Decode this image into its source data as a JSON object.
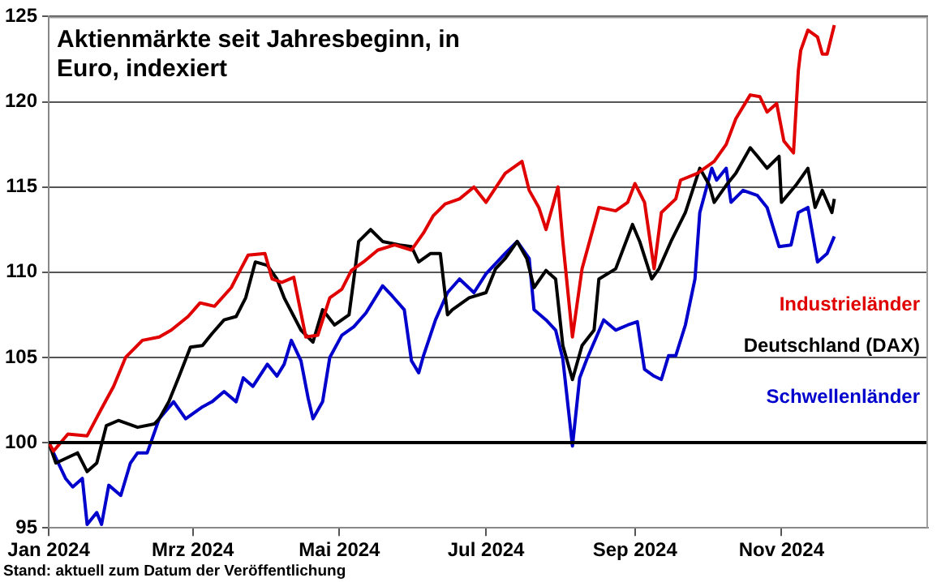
{
  "chart_data": {
    "type": "line",
    "title": "Aktienmärkte seit Jahresbeginn, in Euro, indexiert",
    "annotations": [
      "Stand: aktuell zum Datum der Veröffentlichung"
    ],
    "xlim": [
      "2024-01-01",
      "2025-01-01"
    ],
    "xticks": [
      {
        "value": "2024-01-01",
        "label": "Jan 2024"
      },
      {
        "value": "2024-03-01",
        "label": "Mrz 2024"
      },
      {
        "value": "2024-05-01",
        "label": "Mai 2024"
      },
      {
        "value": "2024-07-01",
        "label": "Jul 2024"
      },
      {
        "value": "2024-09-01",
        "label": "Sep 2024"
      },
      {
        "value": "2024-11-01",
        "label": "Nov 2024"
      }
    ],
    "ylim": [
      95,
      125
    ],
    "yticks": [
      95,
      100,
      105,
      110,
      115,
      120,
      125
    ],
    "grid": "y",
    "legend": false,
    "marker": "none",
    "line_style": "solid",
    "ref_lines": [
      {
        "axis": "y",
        "value": 100,
        "color": "#000000"
      }
    ],
    "series": [
      {
        "name": "Industrieländer",
        "color": "#e00000",
        "x": [
          "2024-01-01",
          "2024-01-03",
          "2024-01-09",
          "2024-01-17",
          "2024-01-23",
          "2024-01-28",
          "2024-02-02",
          "2024-02-09",
          "2024-02-16",
          "2024-02-21",
          "2024-02-28",
          "2024-03-04",
          "2024-03-10",
          "2024-03-17",
          "2024-03-21",
          "2024-03-24",
          "2024-03-31",
          "2024-04-03",
          "2024-04-07",
          "2024-04-12",
          "2024-04-17",
          "2024-04-22",
          "2024-04-27",
          "2024-05-02",
          "2024-05-06",
          "2024-05-11",
          "2024-05-17",
          "2024-05-24",
          "2024-05-31",
          "2024-06-05",
          "2024-06-09",
          "2024-06-14",
          "2024-06-20",
          "2024-06-26",
          "2024-07-01",
          "2024-07-09",
          "2024-07-16",
          "2024-07-19",
          "2024-07-23",
          "2024-07-26",
          "2024-07-31",
          "2024-08-02",
          "2024-08-06",
          "2024-08-10",
          "2024-08-17",
          "2024-08-24",
          "2024-08-29",
          "2024-09-01",
          "2024-09-05",
          "2024-09-09",
          "2024-09-12",
          "2024-09-18",
          "2024-09-20",
          "2024-09-27",
          "2024-10-04",
          "2024-10-09",
          "2024-10-13",
          "2024-10-19",
          "2024-10-23",
          "2024-10-26",
          "2024-10-30",
          "2024-11-02",
          "2024-11-06",
          "2024-11-08",
          "2024-11-09",
          "2024-11-12",
          "2024-11-16",
          "2024-11-18",
          "2024-11-20",
          "2024-11-23"
        ],
        "values": [
          100,
          99.5,
          100.5,
          100.4,
          102,
          103.3,
          105,
          106,
          106.2,
          106.6,
          107.4,
          108.2,
          108,
          109.1,
          110.2,
          111,
          111.1,
          109.6,
          109.4,
          109.7,
          106.2,
          106.3,
          108.5,
          109,
          110.1,
          110.6,
          111.3,
          111.6,
          111.3,
          112.3,
          113.3,
          114,
          114.3,
          115,
          114.1,
          115.8,
          116.5,
          114.8,
          113.8,
          112.5,
          115,
          111.8,
          106.2,
          110.2,
          113.8,
          113.6,
          114.1,
          115.2,
          114.1,
          110.2,
          113.5,
          114.3,
          115.4,
          115.8,
          116.5,
          117.5,
          119,
          120.4,
          120.3,
          119.4,
          119.9,
          117.7,
          117,
          121.8,
          123,
          124.2,
          123.8,
          122.8,
          122.8,
          124.5
        ]
      },
      {
        "name": "Deutschland (DAX)",
        "color": "#000000",
        "x": [
          "2024-01-01",
          "2024-01-04",
          "2024-01-13",
          "2024-01-17",
          "2024-01-21",
          "2024-01-25",
          "2024-01-30",
          "2024-02-07",
          "2024-02-14",
          "2024-02-16",
          "2024-02-20",
          "2024-02-24",
          "2024-02-29",
          "2024-03-05",
          "2024-03-09",
          "2024-03-14",
          "2024-03-19",
          "2024-03-23",
          "2024-03-27",
          "2024-04-01",
          "2024-04-05",
          "2024-04-08",
          "2024-04-15",
          "2024-04-20",
          "2024-04-24",
          "2024-04-29",
          "2024-05-05",
          "2024-05-07",
          "2024-05-09",
          "2024-05-14",
          "2024-05-19",
          "2024-05-26",
          "2024-05-31",
          "2024-06-03",
          "2024-06-08",
          "2024-06-12",
          "2024-06-15",
          "2024-06-17",
          "2024-06-24",
          "2024-07-01",
          "2024-07-05",
          "2024-07-09",
          "2024-07-14",
          "2024-07-18",
          "2024-07-21",
          "2024-07-26",
          "2024-07-30",
          "2024-08-02",
          "2024-08-06",
          "2024-08-10",
          "2024-08-15",
          "2024-08-17",
          "2024-08-24",
          "2024-08-31",
          "2024-09-03",
          "2024-09-08",
          "2024-09-11",
          "2024-09-16",
          "2024-09-22",
          "2024-09-28",
          "2024-10-02",
          "2024-10-04",
          "2024-10-09",
          "2024-10-13",
          "2024-10-19",
          "2024-10-22",
          "2024-10-26",
          "2024-10-31",
          "2024-11-01",
          "2024-11-07",
          "2024-11-12",
          "2024-11-15",
          "2024-11-18",
          "2024-11-22",
          "2024-11-23"
        ],
        "values": [
          100,
          98.8,
          99.4,
          98.3,
          98.8,
          101,
          101.3,
          100.9,
          101.1,
          101.4,
          102.4,
          103.8,
          105.6,
          105.7,
          106.4,
          107.2,
          107.4,
          108.5,
          110.6,
          110.4,
          109.6,
          108.5,
          106.6,
          105.9,
          107.8,
          106.9,
          107.5,
          109.6,
          111.8,
          112.5,
          111.8,
          111.6,
          111.5,
          110.6,
          111.1,
          111.1,
          107.5,
          107.8,
          108.5,
          108.8,
          110.2,
          110.8,
          111.8,
          110.8,
          109.1,
          110.1,
          109.6,
          105.7,
          103.7,
          105.7,
          106.6,
          109.6,
          110.2,
          112.8,
          111.8,
          109.6,
          110.2,
          111.8,
          113.5,
          116.1,
          115.1,
          114.1,
          115.1,
          115.8,
          117.3,
          116.8,
          116.1,
          116.8,
          114.1,
          115.1,
          116.1,
          113.8,
          114.8,
          113.5,
          114.3
        ]
      },
      {
        "name": "Schwellenländer",
        "color": "#0000cc",
        "x": [
          "2024-01-01",
          "2024-01-04",
          "2024-01-08",
          "2024-01-11",
          "2024-01-15",
          "2024-01-17",
          "2024-01-21",
          "2024-01-23",
          "2024-01-26",
          "2024-01-31",
          "2024-02-04",
          "2024-02-07",
          "2024-02-11",
          "2024-02-16",
          "2024-02-22",
          "2024-02-27",
          "2024-03-05",
          "2024-03-09",
          "2024-03-14",
          "2024-03-19",
          "2024-03-22",
          "2024-03-26",
          "2024-04-01",
          "2024-04-05",
          "2024-04-08",
          "2024-04-11",
          "2024-04-15",
          "2024-04-18",
          "2024-04-20",
          "2024-04-24",
          "2024-04-27",
          "2024-05-02",
          "2024-05-07",
          "2024-05-12",
          "2024-05-19",
          "2024-05-23",
          "2024-05-28",
          "2024-05-31",
          "2024-06-03",
          "2024-06-05",
          "2024-06-10",
          "2024-06-15",
          "2024-06-20",
          "2024-06-26",
          "2024-07-01",
          "2024-07-09",
          "2024-07-14",
          "2024-07-19",
          "2024-07-21",
          "2024-07-26",
          "2024-07-30",
          "2024-08-02",
          "2024-08-06",
          "2024-08-09",
          "2024-08-12",
          "2024-08-19",
          "2024-08-24",
          "2024-08-29",
          "2024-09-02",
          "2024-09-05",
          "2024-09-09",
          "2024-09-12",
          "2024-09-15",
          "2024-09-18",
          "2024-09-22",
          "2024-09-26",
          "2024-09-28",
          "2024-10-03",
          "2024-10-05",
          "2024-10-09",
          "2024-10-11",
          "2024-10-16",
          "2024-10-22",
          "2024-10-26",
          "2024-10-31",
          "2024-11-05",
          "2024-11-08",
          "2024-11-12",
          "2024-11-16",
          "2024-11-20",
          "2024-11-23"
        ],
        "values": [
          100,
          99.1,
          97.9,
          97.4,
          97.9,
          95.2,
          95.9,
          95.2,
          97.5,
          96.9,
          98.8,
          99.4,
          99.4,
          101.4,
          102.4,
          101.4,
          102.1,
          102.4,
          103,
          102.4,
          103.8,
          103.3,
          104.6,
          103.9,
          104.6,
          106,
          104.8,
          102.6,
          101.4,
          102.4,
          105,
          106.3,
          106.8,
          107.6,
          109.2,
          108.6,
          107.8,
          104.8,
          104.1,
          105.1,
          107.2,
          108.8,
          109.6,
          108.8,
          109.9,
          111.1,
          111.8,
          110.8,
          107.8,
          107.2,
          106.6,
          104.9,
          99.8,
          103.8,
          104.9,
          107.2,
          106.6,
          106.9,
          107.1,
          104.3,
          103.9,
          103.7,
          105.1,
          105.1,
          106.9,
          109.6,
          113.5,
          116.1,
          115.4,
          116.1,
          114.1,
          114.8,
          114.5,
          113.8,
          111.5,
          111.6,
          113.5,
          113.8,
          110.6,
          111.1,
          112.1
        ]
      }
    ]
  }
}
